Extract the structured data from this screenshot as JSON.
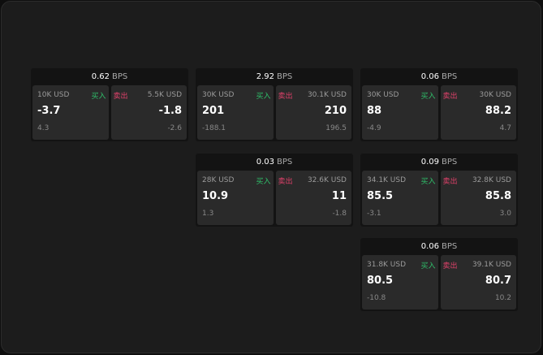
{
  "labels": {
    "buy": "买入",
    "sell": "卖出",
    "unit": "BPS"
  },
  "colors": {
    "buy": "#2fbf6a",
    "sell": "#e0416a"
  },
  "cards": [
    {
      "spread": "0.62",
      "bid": {
        "size": "10K USD",
        "price": "-3.7",
        "change": "4.3"
      },
      "ask": {
        "size": "5.5K USD",
        "price": "-1.8",
        "change": "-2.6"
      }
    },
    {
      "spread": "2.92",
      "bid": {
        "size": "30K USD",
        "price": "201",
        "change": "-188.1"
      },
      "ask": {
        "size": "30.1K USD",
        "price": "210",
        "change": "196.5"
      }
    },
    {
      "spread": "0.06",
      "bid": {
        "size": "30K USD",
        "price": "88",
        "change": "-4.9"
      },
      "ask": {
        "size": "30K USD",
        "price": "88.2",
        "change": "4.7"
      }
    },
    {
      "spread": "0.03",
      "bid": {
        "size": "28K USD",
        "price": "10.9",
        "change": "1.3"
      },
      "ask": {
        "size": "32.6K USD",
        "price": "11",
        "change": "-1.8"
      }
    },
    {
      "spread": "0.09",
      "bid": {
        "size": "34.1K USD",
        "price": "85.5",
        "change": "-3.1"
      },
      "ask": {
        "size": "32.8K USD",
        "price": "85.8",
        "change": "3.0"
      }
    },
    {
      "spread": "0.06",
      "bid": {
        "size": "31.8K USD",
        "price": "80.5",
        "change": "-10.8"
      },
      "ask": {
        "size": "39.1K USD",
        "price": "80.7",
        "change": "10.2"
      }
    }
  ]
}
